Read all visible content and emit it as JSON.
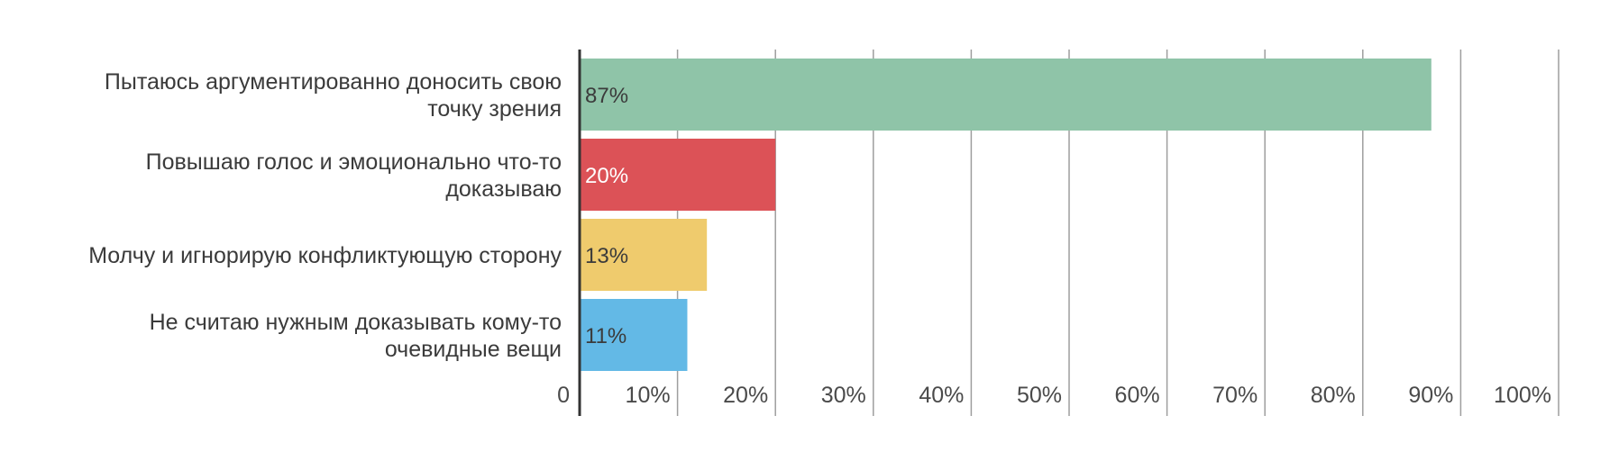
{
  "chart_data": {
    "type": "bar",
    "orientation": "horizontal",
    "categories": [
      [
        "Пытаюсь аргументированно доносить свою",
        "точку зрения"
      ],
      [
        "Повышаю голос и эмоционально что-то",
        "доказываю"
      ],
      [
        "Молчу и игнорирую конфликтующую сторону"
      ],
      [
        "Не считаю нужным доказывать кому-то",
        "очевидные вещи"
      ]
    ],
    "values": [
      87,
      20,
      13,
      11
    ],
    "data_labels": [
      "87%",
      "20%",
      "13%",
      "11%"
    ],
    "colors": [
      "#8fc4a8",
      "#dc5257",
      "#efcb6d",
      "#63b9e6"
    ],
    "label_colors": [
      "#3b3b3b",
      "#ffffff",
      "#3b3b3b",
      "#3b3b3b"
    ],
    "xlim": [
      0,
      100
    ],
    "xticks": [
      0,
      10,
      20,
      30,
      40,
      50,
      60,
      70,
      80,
      90,
      100
    ],
    "xtick_labels": [
      "0",
      "10%",
      "20%",
      "30%",
      "40%",
      "50%",
      "60%",
      "70%",
      "80%",
      "90%",
      "100%"
    ],
    "grid": true,
    "title": "",
    "xlabel": "",
    "ylabel": ""
  }
}
